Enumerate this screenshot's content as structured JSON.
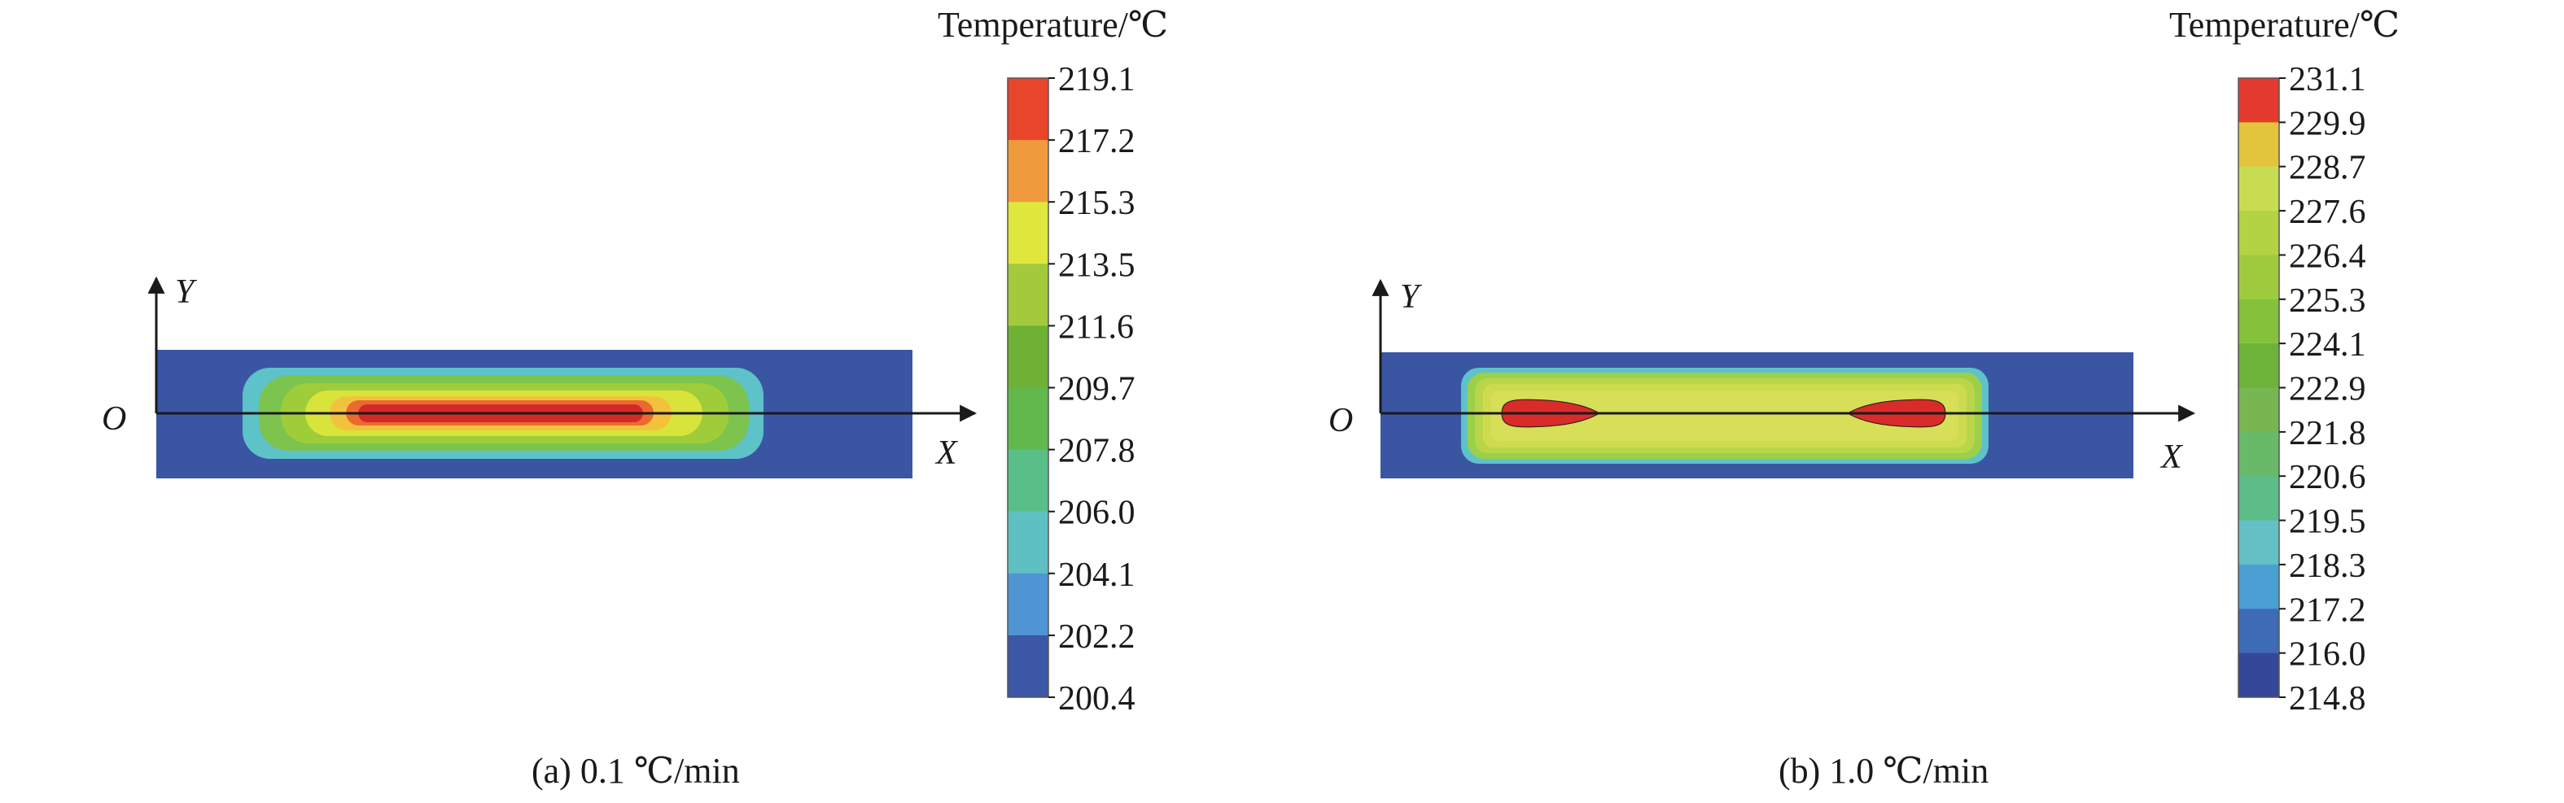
{
  "panels": [
    {
      "id": "a",
      "caption": "(a) 0.1 ℃/min",
      "legend_title": "Temperature/℃",
      "legend_ticks": [
        "219.1",
        "217.2",
        "215.3",
        "213.5",
        "211.6",
        "209.7",
        "207.8",
        "206.0",
        "204.1",
        "202.2",
        "200.4"
      ],
      "legend_colors": [
        "#e8452b",
        "#f09a3e",
        "#dfe63c",
        "#a3c93d",
        "#6fb135",
        "#61b94d",
        "#58bf88",
        "#5fc0c4",
        "#4f95d3",
        "#3b57a5"
      ],
      "axis_labels": {
        "origin": "O",
        "x": "X",
        "y": "Y"
      },
      "contours": [
        "#5ec2c9",
        "#7cc44e",
        "#9fcd3a",
        "#d9e43a",
        "#f2c23d",
        "#eb6a2f",
        "#d42a27"
      ]
    },
    {
      "id": "b",
      "caption": "(b) 1.0 ℃/min",
      "legend_title": "Temperature/℃",
      "legend_ticks": [
        "231.1",
        "229.9",
        "228.7",
        "227.6",
        "226.4",
        "225.3",
        "224.1",
        "222.9",
        "221.8",
        "220.6",
        "219.5",
        "218.3",
        "217.2",
        "216.0",
        "214.8"
      ],
      "legend_colors": [
        "#e53a2e",
        "#e2c53c",
        "#c8dc52",
        "#b3d244",
        "#9ecb3e",
        "#85c23b",
        "#6db338",
        "#78b652",
        "#68ba68",
        "#5cbd89",
        "#63c1c5",
        "#4a9fd3",
        "#3d6bb5",
        "#344799"
      ],
      "axis_labels": {
        "origin": "O",
        "x": "X",
        "y": "Y"
      },
      "contours": [
        "#5ec2c9",
        "#9cd04a",
        "#b9d64a",
        "#cedb4f",
        "#d7de58"
      ],
      "hotspot_color": "#d92b2a"
    }
  ],
  "colors": {
    "background_field": "#3a56a3",
    "axis": "#1a1a1a",
    "tick_text": "#1a1a1a"
  }
}
